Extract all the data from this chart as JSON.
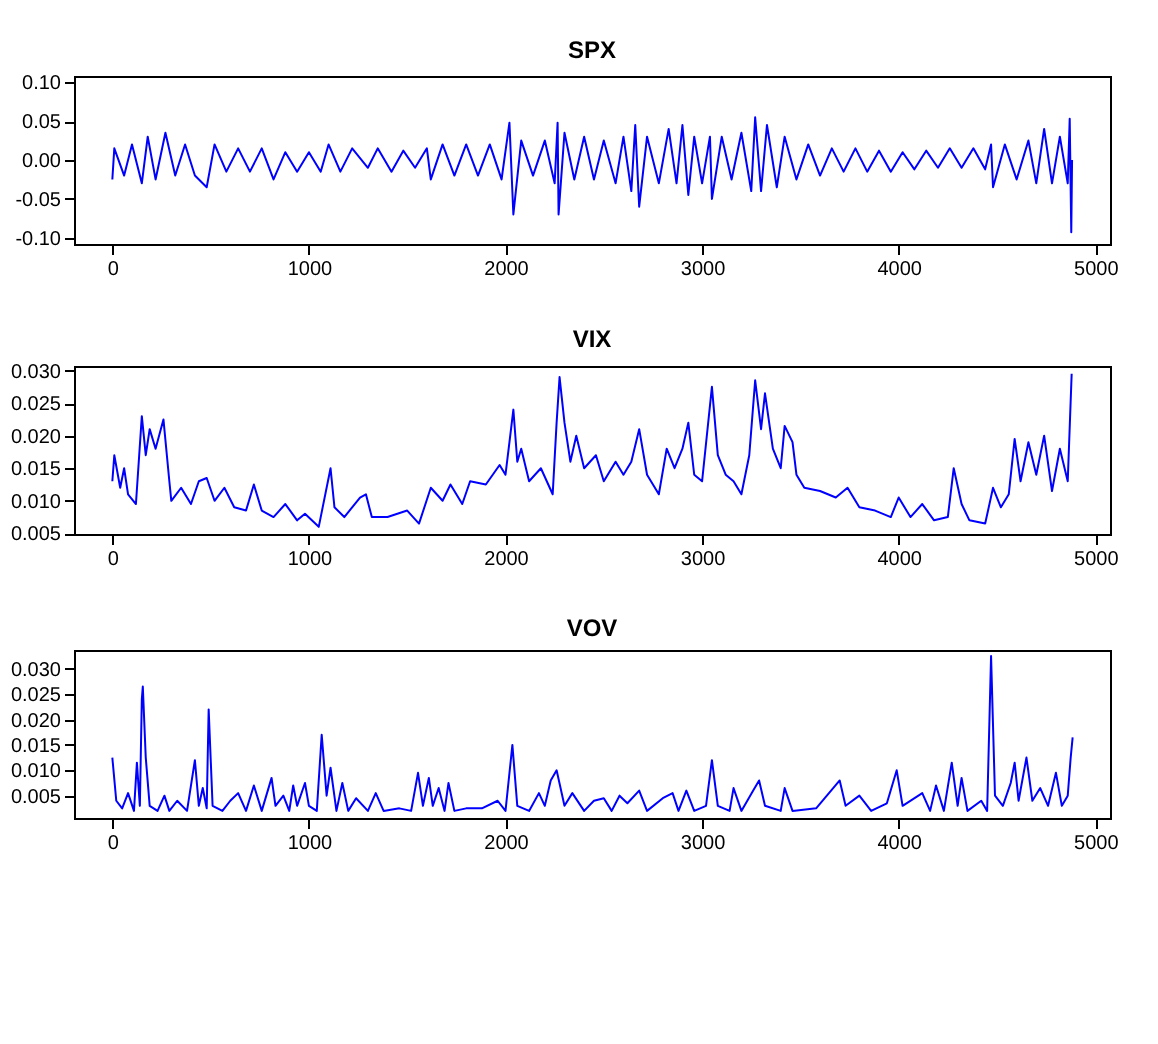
{
  "chart_data": [
    {
      "type": "line",
      "title": "SPX",
      "color": "#0000ff",
      "grid": false,
      "xlim": [
        -195,
        5075
      ],
      "xticks": [
        0,
        1000,
        2000,
        3000,
        4000,
        5000
      ],
      "ylim": [
        -0.108,
        0.108
      ],
      "yticks": [
        {
          "value": -0.1,
          "label": "-0.10"
        },
        {
          "value": -0.05,
          "label": "-0.05"
        },
        {
          "value": 0,
          "label": "0.00"
        },
        {
          "value": 0.05,
          "label": "0.05"
        },
        {
          "value": 0.1,
          "label": "0.10"
        }
      ],
      "x": [
        0,
        10,
        60,
        100,
        150,
        180,
        220,
        270,
        320,
        370,
        420,
        480,
        520,
        580,
        640,
        700,
        760,
        820,
        880,
        940,
        1000,
        1060,
        1100,
        1160,
        1220,
        1300,
        1350,
        1420,
        1480,
        1540,
        1600,
        1620,
        1680,
        1740,
        1800,
        1860,
        1920,
        1980,
        2020,
        2040,
        2080,
        2140,
        2200,
        2250,
        2265,
        2270,
        2300,
        2350,
        2400,
        2450,
        2500,
        2560,
        2600,
        2640,
        2660,
        2680,
        2720,
        2780,
        2830,
        2870,
        2900,
        2930,
        2960,
        3000,
        3040,
        3050,
        3100,
        3150,
        3200,
        3250,
        3270,
        3300,
        3330,
        3380,
        3420,
        3480,
        3540,
        3600,
        3660,
        3720,
        3780,
        3840,
        3900,
        3960,
        4020,
        4080,
        4140,
        4200,
        4260,
        4320,
        4380,
        4440,
        4470,
        4480,
        4540,
        4600,
        4660,
        4700,
        4740,
        4780,
        4820,
        4860,
        4870,
        4878,
        4882
      ],
      "values": [
        -0.025,
        0.015,
        -0.02,
        0.02,
        -0.03,
        0.03,
        -0.025,
        0.035,
        -0.02,
        0.02,
        -0.02,
        -0.035,
        0.02,
        -0.015,
        0.015,
        -0.015,
        0.015,
        -0.025,
        0.01,
        -0.015,
        0.01,
        -0.015,
        0.02,
        -0.015,
        0.015,
        -0.01,
        0.015,
        -0.015,
        0.012,
        -0.01,
        0.015,
        -0.025,
        0.02,
        -0.02,
        0.02,
        -0.02,
        0.02,
        -0.025,
        0.048,
        -0.07,
        0.025,
        -0.02,
        0.025,
        -0.03,
        0.048,
        -0.07,
        0.035,
        -0.025,
        0.03,
        -0.025,
        0.025,
        -0.03,
        0.03,
        -0.04,
        0.045,
        -0.06,
        0.03,
        -0.03,
        0.04,
        -0.03,
        0.045,
        -0.045,
        0.03,
        -0.03,
        0.03,
        -0.05,
        0.03,
        -0.025,
        0.035,
        -0.04,
        0.055,
        -0.04,
        0.045,
        -0.035,
        0.03,
        -0.025,
        0.02,
        -0.02,
        0.015,
        -0.015,
        0.015,
        -0.015,
        0.012,
        -0.015,
        0.01,
        -0.012,
        0.012,
        -0.01,
        0.015,
        -0.01,
        0.015,
        -0.012,
        0.02,
        -0.035,
        0.02,
        -0.025,
        0.025,
        -0.03,
        0.04,
        -0.03,
        0.03,
        -0.03,
        0.053,
        -0.093,
        0.0
      ]
    },
    {
      "type": "line",
      "title": "VIX",
      "color": "#0000ff",
      "grid": false,
      "xlim": [
        -195,
        5075
      ],
      "xticks": [
        0,
        1000,
        2000,
        3000,
        4000,
        5000
      ],
      "ylim": [
        0.0049,
        0.0307
      ],
      "yticks": [
        {
          "value": 0.005,
          "label": "0.005"
        },
        {
          "value": 0.01,
          "label": "0.010"
        },
        {
          "value": 0.015,
          "label": "0.015"
        },
        {
          "value": 0.02,
          "label": "0.020"
        },
        {
          "value": 0.025,
          "label": "0.025"
        },
        {
          "value": 0.03,
          "label": "0.030"
        }
      ],
      "x": [
        0,
        10,
        40,
        60,
        80,
        120,
        150,
        170,
        190,
        220,
        260,
        290,
        300,
        350,
        400,
        440,
        480,
        520,
        570,
        620,
        680,
        720,
        760,
        820,
        880,
        940,
        980,
        1050,
        1110,
        1130,
        1180,
        1260,
        1290,
        1320,
        1400,
        1500,
        1560,
        1620,
        1680,
        1720,
        1780,
        1820,
        1900,
        1970,
        2000,
        2040,
        2060,
        2080,
        2120,
        2180,
        2240,
        2260,
        2275,
        2300,
        2330,
        2360,
        2400,
        2460,
        2500,
        2560,
        2600,
        2640,
        2680,
        2720,
        2780,
        2820,
        2860,
        2900,
        2930,
        2960,
        3000,
        3050,
        3080,
        3120,
        3160,
        3200,
        3240,
        3270,
        3300,
        3320,
        3360,
        3400,
        3420,
        3460,
        3480,
        3520,
        3600,
        3680,
        3740,
        3800,
        3880,
        3960,
        4000,
        4060,
        4120,
        4180,
        4250,
        4280,
        4320,
        4360,
        4440,
        4480,
        4520,
        4560,
        4590,
        4620,
        4660,
        4700,
        4740,
        4780,
        4820,
        4860,
        4880
      ],
      "values": [
        0.013,
        0.017,
        0.012,
        0.015,
        0.011,
        0.0095,
        0.023,
        0.017,
        0.021,
        0.018,
        0.0225,
        0.013,
        0.01,
        0.012,
        0.0095,
        0.013,
        0.0135,
        0.01,
        0.012,
        0.009,
        0.0085,
        0.0125,
        0.0085,
        0.0075,
        0.0095,
        0.007,
        0.008,
        0.006,
        0.015,
        0.009,
        0.0075,
        0.0105,
        0.011,
        0.0075,
        0.0075,
        0.0085,
        0.0065,
        0.012,
        0.01,
        0.0125,
        0.0095,
        0.013,
        0.0125,
        0.0155,
        0.014,
        0.024,
        0.016,
        0.018,
        0.013,
        0.015,
        0.011,
        0.022,
        0.029,
        0.022,
        0.016,
        0.02,
        0.015,
        0.017,
        0.013,
        0.016,
        0.014,
        0.016,
        0.021,
        0.014,
        0.011,
        0.018,
        0.015,
        0.018,
        0.022,
        0.014,
        0.013,
        0.0275,
        0.017,
        0.014,
        0.013,
        0.011,
        0.017,
        0.0285,
        0.021,
        0.0265,
        0.018,
        0.015,
        0.0215,
        0.019,
        0.014,
        0.012,
        0.0115,
        0.0105,
        0.012,
        0.009,
        0.0085,
        0.0075,
        0.0105,
        0.0075,
        0.0095,
        0.007,
        0.0075,
        0.015,
        0.0095,
        0.007,
        0.0065,
        0.012,
        0.009,
        0.011,
        0.0195,
        0.013,
        0.019,
        0.014,
        0.02,
        0.0115,
        0.018,
        0.013,
        0.0295
      ]
    },
    {
      "type": "line",
      "title": "VOV",
      "color": "#0000ff",
      "grid": false,
      "xlim": [
        -195,
        5075
      ],
      "xticks": [
        0,
        1000,
        2000,
        3000,
        4000,
        5000
      ],
      "ylim": [
        0.0006,
        0.0337
      ],
      "yticks": [
        {
          "value": 0.005,
          "label": "0.005"
        },
        {
          "value": 0.01,
          "label": "0.010"
        },
        {
          "value": 0.015,
          "label": "0.015"
        },
        {
          "value": 0.02,
          "label": "0.020"
        },
        {
          "value": 0.025,
          "label": "0.025"
        },
        {
          "value": 0.03,
          "label": "0.030"
        }
      ],
      "x": [
        0,
        20,
        50,
        80,
        110,
        125,
        140,
        150,
        155,
        170,
        190,
        230,
        265,
        290,
        330,
        380,
        420,
        440,
        460,
        480,
        490,
        510,
        560,
        600,
        640,
        680,
        720,
        760,
        810,
        830,
        870,
        900,
        920,
        940,
        980,
        1000,
        1040,
        1065,
        1090,
        1110,
        1140,
        1170,
        1200,
        1240,
        1300,
        1340,
        1380,
        1460,
        1520,
        1555,
        1580,
        1610,
        1630,
        1660,
        1690,
        1710,
        1740,
        1800,
        1880,
        1960,
        2000,
        2035,
        2060,
        2120,
        2170,
        2200,
        2230,
        2260,
        2300,
        2340,
        2400,
        2450,
        2500,
        2540,
        2580,
        2620,
        2680,
        2720,
        2800,
        2850,
        2880,
        2920,
        2960,
        3020,
        3050,
        3080,
        3140,
        3160,
        3200,
        3260,
        3290,
        3320,
        3400,
        3420,
        3460,
        3580,
        3700,
        3730,
        3800,
        3860,
        3940,
        3990,
        4020,
        4120,
        4160,
        4190,
        4230,
        4270,
        4300,
        4320,
        4350,
        4420,
        4450,
        4470,
        4490,
        4530,
        4570,
        4590,
        4610,
        4650,
        4680,
        4720,
        4760,
        4800,
        4830,
        4860,
        4875,
        4885
      ],
      "values": [
        0.0125,
        0.004,
        0.0025,
        0.0055,
        0.002,
        0.0115,
        0.003,
        0.024,
        0.0265,
        0.0125,
        0.003,
        0.002,
        0.005,
        0.002,
        0.004,
        0.002,
        0.012,
        0.003,
        0.0065,
        0.0025,
        0.022,
        0.003,
        0.002,
        0.004,
        0.0055,
        0.002,
        0.007,
        0.002,
        0.0085,
        0.003,
        0.005,
        0.002,
        0.007,
        0.003,
        0.0075,
        0.003,
        0.002,
        0.017,
        0.005,
        0.0105,
        0.002,
        0.0075,
        0.002,
        0.0045,
        0.002,
        0.0055,
        0.002,
        0.0025,
        0.002,
        0.0095,
        0.003,
        0.0085,
        0.003,
        0.0065,
        0.002,
        0.0075,
        0.002,
        0.0025,
        0.0025,
        0.004,
        0.002,
        0.015,
        0.003,
        0.002,
        0.0055,
        0.003,
        0.008,
        0.01,
        0.003,
        0.0055,
        0.002,
        0.004,
        0.0045,
        0.002,
        0.005,
        0.0035,
        0.006,
        0.002,
        0.0045,
        0.0055,
        0.002,
        0.006,
        0.002,
        0.003,
        0.012,
        0.003,
        0.002,
        0.0065,
        0.002,
        0.006,
        0.008,
        0.003,
        0.002,
        0.0065,
        0.002,
        0.0025,
        0.008,
        0.003,
        0.005,
        0.002,
        0.0035,
        0.01,
        0.003,
        0.0055,
        0.002,
        0.007,
        0.002,
        0.0115,
        0.003,
        0.0085,
        0.002,
        0.004,
        0.002,
        0.0325,
        0.005,
        0.003,
        0.0075,
        0.0115,
        0.004,
        0.0125,
        0.004,
        0.0065,
        0.003,
        0.0095,
        0.003,
        0.005,
        0.0125,
        0.0165
      ]
    }
  ]
}
